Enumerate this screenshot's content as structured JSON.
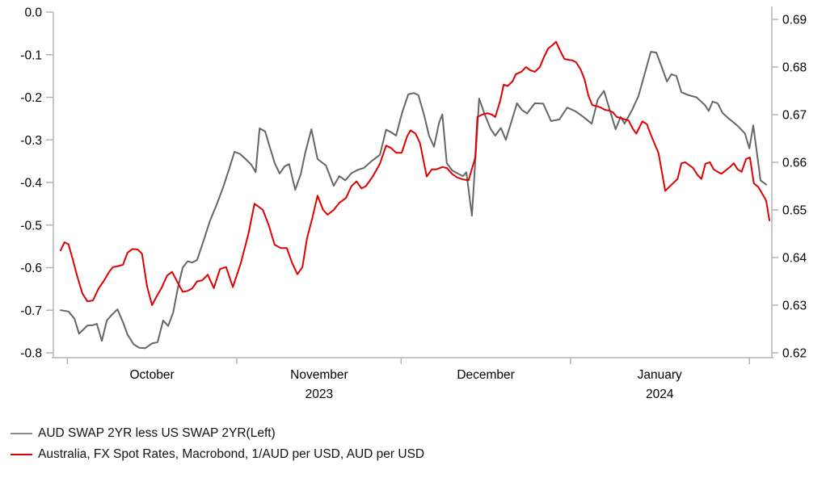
{
  "chart_data": {
    "type": "line",
    "title": "",
    "x_axis": {
      "unit": "days since 2023-09-30",
      "month_tick_days": [
        1.2,
        31.6,
        61.1,
        91.5,
        123.6
      ],
      "month_labels": [
        {
          "label": "October",
          "center_day": 16.4,
          "year": ""
        },
        {
          "label": "November",
          "center_day": 46.4,
          "year": "2023"
        },
        {
          "label": "December",
          "center_day": 76.3,
          "year": ""
        },
        {
          "label": "January",
          "center_day": 107.5,
          "year": "2024"
        }
      ]
    },
    "y_left": {
      "min": -0.8,
      "max": 0.0,
      "tick_values": [
        0.0,
        -0.1,
        -0.2,
        -0.3,
        -0.4,
        -0.5,
        -0.6,
        -0.7,
        -0.8
      ],
      "tick_labels": [
        "0.0",
        "-0.1",
        "-0.2",
        "-0.3",
        "-0.4",
        "-0.5",
        "-0.6",
        "-0.7",
        "-0.8"
      ]
    },
    "y_right": {
      "min": 0.62,
      "max": 0.69,
      "tick_values": [
        0.69,
        0.68,
        0.67,
        0.66,
        0.65,
        0.64,
        0.63,
        0.62
      ],
      "tick_labels": [
        "0.69",
        "0.68",
        "0.67",
        "0.66",
        "0.65",
        "0.64",
        "0.63",
        "0.62"
      ]
    },
    "grid": false,
    "legend_position": "bottom-left",
    "series": [
      {
        "name": "AUD SWAP 2YR less US SWAP 2YR(Left)",
        "axis": "left",
        "color": "#666666",
        "points": [
          [
            0,
            -0.7
          ],
          [
            1.4,
            -0.703
          ],
          [
            2.5,
            -0.72
          ],
          [
            3.3,
            -0.755
          ],
          [
            4.1,
            -0.745
          ],
          [
            4.8,
            -0.736
          ],
          [
            5.8,
            -0.735
          ],
          [
            6.5,
            -0.732
          ],
          [
            7.4,
            -0.772
          ],
          [
            8.3,
            -0.724
          ],
          [
            9.1,
            -0.712
          ],
          [
            10.2,
            -0.698
          ],
          [
            11.2,
            -0.728
          ],
          [
            12,
            -0.757
          ],
          [
            13.1,
            -0.78
          ],
          [
            14.1,
            -0.788
          ],
          [
            15.2,
            -0.789
          ],
          [
            16.4,
            -0.778
          ],
          [
            17.4,
            -0.775
          ],
          [
            18.4,
            -0.724
          ],
          [
            19.3,
            -0.737
          ],
          [
            20.2,
            -0.705
          ],
          [
            21,
            -0.65
          ],
          [
            21.9,
            -0.6
          ],
          [
            22.8,
            -0.585
          ],
          [
            23.6,
            -0.588
          ],
          [
            24.5,
            -0.582
          ],
          [
            25.7,
            -0.535
          ],
          [
            26.8,
            -0.49
          ],
          [
            28,
            -0.452
          ],
          [
            29.2,
            -0.41
          ],
          [
            30.2,
            -0.37
          ],
          [
            31.2,
            -0.328
          ],
          [
            32.2,
            -0.333
          ],
          [
            33.2,
            -0.345
          ],
          [
            34.2,
            -0.358
          ],
          [
            35,
            -0.376
          ],
          [
            35.7,
            -0.273
          ],
          [
            36.7,
            -0.28
          ],
          [
            37.6,
            -0.32
          ],
          [
            38.4,
            -0.354
          ],
          [
            39.3,
            -0.379
          ],
          [
            40.2,
            -0.362
          ],
          [
            41,
            -0.357
          ],
          [
            42.1,
            -0.417
          ],
          [
            43.1,
            -0.38
          ],
          [
            43.9,
            -0.33
          ],
          [
            45,
            -0.275
          ],
          [
            46.1,
            -0.345
          ],
          [
            47.6,
            -0.36
          ],
          [
            49,
            -0.408
          ],
          [
            50,
            -0.385
          ],
          [
            51.1,
            -0.395
          ],
          [
            52.2,
            -0.378
          ],
          [
            53.4,
            -0.37
          ],
          [
            54.4,
            -0.366
          ],
          [
            55.8,
            -0.35
          ],
          [
            57.3,
            -0.335
          ],
          [
            58.4,
            -0.276
          ],
          [
            59.3,
            -0.282
          ],
          [
            60.2,
            -0.29
          ],
          [
            61.3,
            -0.235
          ],
          [
            62.4,
            -0.193
          ],
          [
            63.4,
            -0.19
          ],
          [
            64.2,
            -0.195
          ],
          [
            65.3,
            -0.245
          ],
          [
            66.1,
            -0.29
          ],
          [
            67,
            -0.316
          ],
          [
            67.9,
            -0.26
          ],
          [
            68.5,
            -0.24
          ],
          [
            69.3,
            -0.355
          ],
          [
            70.3,
            -0.372
          ],
          [
            71.4,
            -0.38
          ],
          [
            72.2,
            -0.385
          ],
          [
            72.8,
            -0.376
          ],
          [
            73.8,
            -0.478
          ],
          [
            75.1,
            -0.203
          ],
          [
            76.1,
            -0.24
          ],
          [
            77.2,
            -0.275
          ],
          [
            78,
            -0.29
          ],
          [
            79,
            -0.272
          ],
          [
            79.9,
            -0.3
          ],
          [
            81.9,
            -0.214
          ],
          [
            82.8,
            -0.23
          ],
          [
            83.7,
            -0.238
          ],
          [
            85.1,
            -0.214
          ],
          [
            86.6,
            -0.215
          ],
          [
            88,
            -0.256
          ],
          [
            89.5,
            -0.252
          ],
          [
            90.9,
            -0.224
          ],
          [
            92.4,
            -0.233
          ],
          [
            93.8,
            -0.246
          ],
          [
            95.3,
            -0.262
          ],
          [
            96.4,
            -0.205
          ],
          [
            97.5,
            -0.185
          ],
          [
            99.6,
            -0.275
          ],
          [
            100.5,
            -0.246
          ],
          [
            101.2,
            -0.262
          ],
          [
            102.5,
            -0.231
          ],
          [
            103.7,
            -0.197
          ],
          [
            104.7,
            -0.15
          ],
          [
            105.9,
            -0.093
          ],
          [
            106.9,
            -0.095
          ],
          [
            107.9,
            -0.13
          ],
          [
            108.8,
            -0.163
          ],
          [
            109.6,
            -0.146
          ],
          [
            110.5,
            -0.15
          ],
          [
            111.4,
            -0.188
          ],
          [
            112.7,
            -0.195
          ],
          [
            114.1,
            -0.2
          ],
          [
            115.6,
            -0.218
          ],
          [
            116.3,
            -0.232
          ],
          [
            117,
            -0.21
          ],
          [
            117.9,
            -0.214
          ],
          [
            118.8,
            -0.237
          ],
          [
            119.9,
            -0.25
          ],
          [
            121.4,
            -0.266
          ],
          [
            122.8,
            -0.285
          ],
          [
            123.6,
            -0.32
          ],
          [
            124.3,
            -0.266
          ],
          [
            125.6,
            -0.395
          ],
          [
            126.6,
            -0.405
          ]
        ]
      },
      {
        "name": "Australia, FX Spot Rates, Macrobond, 1/AUD per USD, AUD per USD",
        "axis": "right",
        "color": "#e00000",
        "points": [
          [
            0,
            0.6415
          ],
          [
            0.7,
            0.6432
          ],
          [
            1.4,
            0.6428
          ],
          [
            2.2,
            0.6395
          ],
          [
            3,
            0.636
          ],
          [
            3.9,
            0.6325
          ],
          [
            4.8,
            0.6308
          ],
          [
            5.8,
            0.631
          ],
          [
            6.8,
            0.6335
          ],
          [
            7.7,
            0.635
          ],
          [
            8.7,
            0.637
          ],
          [
            9.4,
            0.638
          ],
          [
            10.3,
            0.6382
          ],
          [
            11.2,
            0.6385
          ],
          [
            12,
            0.641
          ],
          [
            12.9,
            0.6418
          ],
          [
            13.8,
            0.6417
          ],
          [
            14.6,
            0.6408
          ],
          [
            15.5,
            0.634
          ],
          [
            16.4,
            0.63
          ],
          [
            17.3,
            0.632
          ],
          [
            18.1,
            0.6336
          ],
          [
            19.1,
            0.6362
          ],
          [
            20,
            0.637
          ],
          [
            20.9,
            0.635
          ],
          [
            21.9,
            0.6328
          ],
          [
            22.8,
            0.633
          ],
          [
            23.6,
            0.6335
          ],
          [
            24.5,
            0.635
          ],
          [
            25.4,
            0.6352
          ],
          [
            26.4,
            0.6364
          ],
          [
            27.5,
            0.6336
          ],
          [
            28.6,
            0.6376
          ],
          [
            29.7,
            0.638
          ],
          [
            30.9,
            0.6338
          ],
          [
            32.3,
            0.6387
          ],
          [
            33.7,
            0.645
          ],
          [
            34.8,
            0.6513
          ],
          [
            36.3,
            0.65
          ],
          [
            37.4,
            0.6466
          ],
          [
            38.4,
            0.6427
          ],
          [
            39.5,
            0.642
          ],
          [
            40.6,
            0.642
          ],
          [
            41.5,
            0.639
          ],
          [
            42.5,
            0.6365
          ],
          [
            43.4,
            0.638
          ],
          [
            44.2,
            0.644
          ],
          [
            45.1,
            0.648
          ],
          [
            46.1,
            0.653
          ],
          [
            47.1,
            0.65
          ],
          [
            47.9,
            0.649
          ],
          [
            49,
            0.65
          ],
          [
            50,
            0.6515
          ],
          [
            51.2,
            0.6525
          ],
          [
            52.2,
            0.655
          ],
          [
            53.1,
            0.656
          ],
          [
            54,
            0.6545
          ],
          [
            54.8,
            0.655
          ],
          [
            56,
            0.657
          ],
          [
            57.3,
            0.6597
          ],
          [
            58.4,
            0.6635
          ],
          [
            59.3,
            0.663
          ],
          [
            60.2,
            0.662
          ],
          [
            61.2,
            0.662
          ],
          [
            62.2,
            0.6655
          ],
          [
            62.8,
            0.6667
          ],
          [
            63.7,
            0.666
          ],
          [
            64.5,
            0.664
          ],
          [
            65.7,
            0.657
          ],
          [
            66.6,
            0.6585
          ],
          [
            67.4,
            0.6585
          ],
          [
            68.5,
            0.659
          ],
          [
            69.3,
            0.6588
          ],
          [
            70.3,
            0.6575
          ],
          [
            71.2,
            0.6568
          ],
          [
            72.2,
            0.6564
          ],
          [
            73.2,
            0.6562
          ],
          [
            74.4,
            0.661
          ],
          [
            74.8,
            0.6695
          ],
          [
            75.6,
            0.67
          ],
          [
            76.6,
            0.6703
          ],
          [
            77.4,
            0.67
          ],
          [
            78,
            0.6695
          ],
          [
            78.9,
            0.673
          ],
          [
            79.5,
            0.6763
          ],
          [
            80.2,
            0.676
          ],
          [
            81.1,
            0.677
          ],
          [
            81.7,
            0.6785
          ],
          [
            82.7,
            0.679
          ],
          [
            83.5,
            0.68
          ],
          [
            84.3,
            0.6793
          ],
          [
            85.1,
            0.679
          ],
          [
            86,
            0.68
          ],
          [
            86.7,
            0.682
          ],
          [
            87.5,
            0.6839
          ],
          [
            88.2,
            0.6845
          ],
          [
            88.9,
            0.6853
          ],
          [
            89.6,
            0.6835
          ],
          [
            90.4,
            0.6817
          ],
          [
            91.2,
            0.6815
          ],
          [
            91.8,
            0.6814
          ],
          [
            92.5,
            0.681
          ],
          [
            93.3,
            0.6795
          ],
          [
            94,
            0.6775
          ],
          [
            94.7,
            0.674
          ],
          [
            95.4,
            0.672
          ],
          [
            96.2,
            0.6718
          ],
          [
            96.9,
            0.6715
          ],
          [
            97.7,
            0.671
          ],
          [
            98.3,
            0.6709
          ],
          [
            99.1,
            0.6705
          ],
          [
            99.8,
            0.6695
          ],
          [
            100.5,
            0.6693
          ],
          [
            101.2,
            0.669
          ],
          [
            101.9,
            0.6688
          ],
          [
            102.7,
            0.667
          ],
          [
            103.3,
            0.666
          ],
          [
            104.4,
            0.6686
          ],
          [
            105.2,
            0.668
          ],
          [
            105.9,
            0.6658
          ],
          [
            107.3,
            0.6619
          ],
          [
            108.5,
            0.654
          ],
          [
            109.2,
            0.6548
          ],
          [
            110.7,
            0.6565
          ],
          [
            111.4,
            0.6598
          ],
          [
            112.1,
            0.66
          ],
          [
            113.5,
            0.6588
          ],
          [
            114.3,
            0.6573
          ],
          [
            115,
            0.6565
          ],
          [
            115.7,
            0.6597
          ],
          [
            116.5,
            0.66
          ],
          [
            117.2,
            0.6585
          ],
          [
            117.9,
            0.658
          ],
          [
            118.6,
            0.6576
          ],
          [
            120.1,
            0.659
          ],
          [
            120.8,
            0.6598
          ],
          [
            121.5,
            0.6585
          ],
          [
            122.2,
            0.658
          ],
          [
            123,
            0.6607
          ],
          [
            123.7,
            0.661
          ],
          [
            124.4,
            0.6556
          ],
          [
            125.2,
            0.6548
          ],
          [
            126.6,
            0.652
          ],
          [
            127.2,
            0.6478
          ]
        ]
      }
    ]
  },
  "legend": {
    "items": [
      {
        "label": "AUD SWAP 2YR less US SWAP 2YR(Left)",
        "color": "#8c8c8c"
      },
      {
        "label": "Australia, FX Spot Rates, Macrobond, 1/AUD per USD, AUD per USD",
        "color": "#e00000"
      }
    ]
  }
}
